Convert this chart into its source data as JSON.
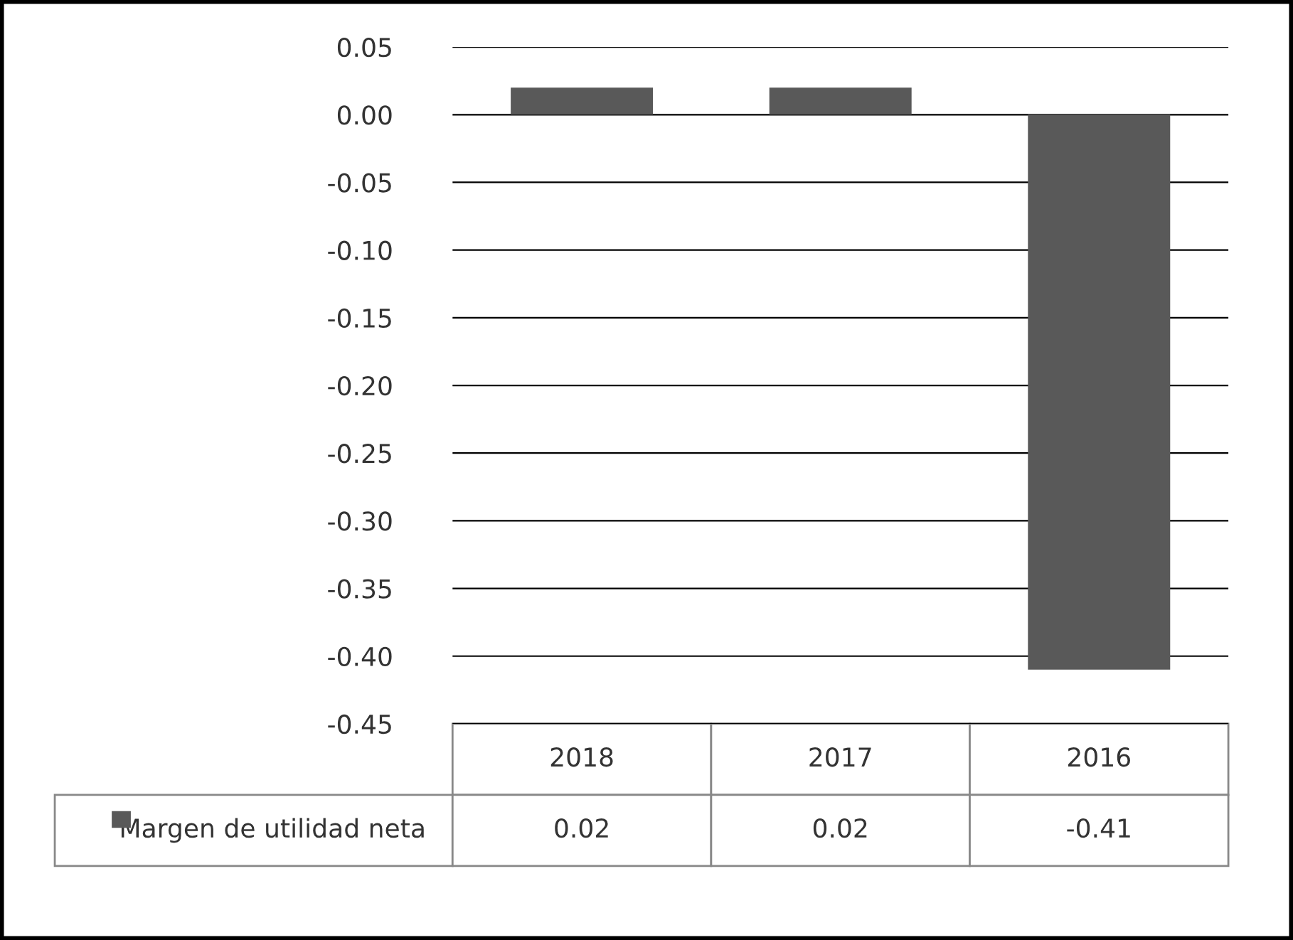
{
  "chart_data": {
    "type": "bar",
    "categories": [
      "2018",
      "2017",
      "2016"
    ],
    "series": [
      {
        "name": "Margen de utilidad neta",
        "color": "#595959",
        "values": [
          0.02,
          0.02,
          -0.41
        ]
      }
    ],
    "ylim": [
      -0.45,
      0.05
    ],
    "yticks": [
      {
        "value": -0.45,
        "label": "-0.45"
      },
      {
        "value": -0.4,
        "label": "-0.40"
      },
      {
        "value": -0.35,
        "label": "-0.35"
      },
      {
        "value": -0.3,
        "label": "-0.30"
      },
      {
        "value": -0.25,
        "label": "-0.25"
      },
      {
        "value": -0.2,
        "label": "-0.20"
      },
      {
        "value": -0.15,
        "label": "-0.15"
      },
      {
        "value": -0.1,
        "label": "-0.10"
      },
      {
        "value": -0.05,
        "label": "-0.05"
      },
      {
        "value": 0,
        "label": "0.00"
      },
      {
        "value": 0.05,
        "label": "0.05"
      }
    ],
    "grid": "y",
    "legend": "bottom",
    "data_labels": true
  }
}
